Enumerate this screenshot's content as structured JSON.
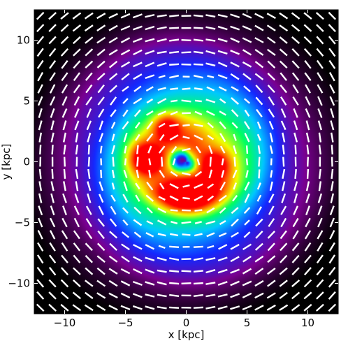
{
  "chart_data": {
    "type": "heatmap",
    "title": "",
    "xlabel": "x [kpc]",
    "ylabel": "y [kpc]",
    "xlim": [
      -12.5,
      12.5
    ],
    "ylim": [
      -12.5,
      12.5
    ],
    "xticks": [
      -10,
      -5,
      0,
      5,
      10
    ],
    "yticks": [
      -10,
      -5,
      0,
      5,
      10
    ],
    "xtick_labels": [
      "−10",
      "−5",
      "0",
      "5",
      "10"
    ],
    "ytick_labels": [
      "−10",
      "−5",
      "0",
      "5",
      "10"
    ],
    "grid": false,
    "colormap": [
      "#000000",
      "#7a0090",
      "#1428ff",
      "#00c8ff",
      "#00ff60",
      "#f0ff00",
      "#ff7800",
      "#ff0000"
    ],
    "vector_color": "#ffffff",
    "intensity_features": [
      {
        "x": 0.0,
        "y": 0.0,
        "amplitude": 0.55,
        "sigma": 6.0,
        "shape": "disk"
      },
      {
        "x": -3.3,
        "y": 0.2,
        "amplitude": 0.55,
        "sigma": 0.9,
        "shape": "blob"
      },
      {
        "x": -1.6,
        "y": 2.8,
        "amplitude": 0.35,
        "sigma": 0.7,
        "shape": "blob"
      },
      {
        "x": 0.0,
        "y": -2.9,
        "amplitude": 0.6,
        "sigma": 0.8,
        "shape": "arc"
      },
      {
        "x": 2.4,
        "y": -0.3,
        "amplitude": 0.4,
        "sigma": 0.8,
        "shape": "blob"
      },
      {
        "x": -0.3,
        "y": 0.0,
        "amplitude": -0.75,
        "sigma": 0.7,
        "shape": "hole"
      }
    ],
    "vector_field": {
      "type": "polarization",
      "pattern": "azimuthal",
      "grid_spacing": 1.0
    }
  }
}
